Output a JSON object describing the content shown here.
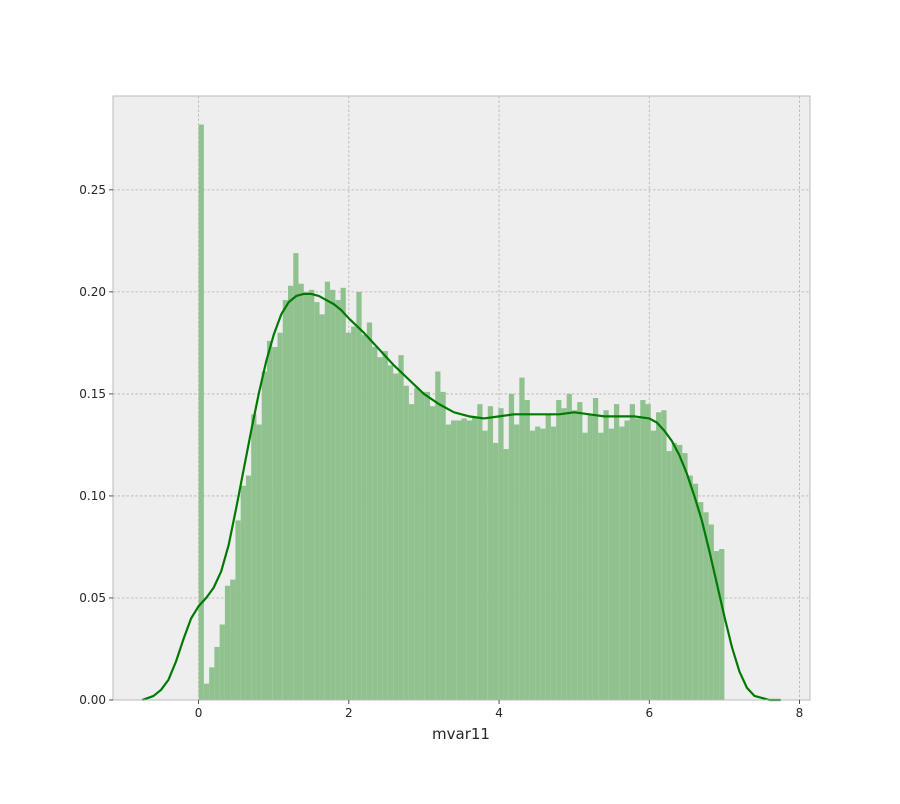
{
  "chart_data": {
    "type": "bar",
    "subtype": "histogram-with-kde",
    "title": "",
    "xlabel": "mvar11",
    "ylabel": "",
    "xlim": [
      -1.14,
      8.14
    ],
    "ylim": [
      0,
      0.296
    ],
    "x_ticks": [
      0,
      2,
      4,
      6,
      8
    ],
    "x_tick_labels": [
      "0",
      "2",
      "4",
      "6",
      "8"
    ],
    "y_ticks": [
      0.0,
      0.05,
      0.1,
      0.15,
      0.2,
      0.25
    ],
    "y_tick_labels": [
      "0.00",
      "0.05",
      "0.10",
      "0.15",
      "0.20",
      "0.25"
    ],
    "grid": true,
    "style": "bmh",
    "colors": {
      "background": "#eeeeee",
      "grid": "#b2b2b2",
      "spine": "#bcbcbc",
      "bars": "#90c290",
      "kde_line": "#007a00"
    },
    "histogram": {
      "bin_start": 0.0,
      "bin_width": 0.07,
      "densities": [
        0.282,
        0.008,
        0.016,
        0.026,
        0.037,
        0.056,
        0.059,
        0.088,
        0.105,
        0.11,
        0.14,
        0.135,
        0.161,
        0.176,
        0.173,
        0.18,
        0.196,
        0.203,
        0.219,
        0.204,
        0.2,
        0.201,
        0.195,
        0.189,
        0.205,
        0.201,
        0.196,
        0.202,
        0.18,
        0.183,
        0.2,
        0.179,
        0.185,
        0.173,
        0.168,
        0.171,
        0.164,
        0.16,
        0.169,
        0.154,
        0.145,
        0.153,
        0.151,
        0.151,
        0.144,
        0.161,
        0.151,
        0.135,
        0.137,
        0.137,
        0.138,
        0.137,
        0.139,
        0.145,
        0.132,
        0.144,
        0.126,
        0.143,
        0.123,
        0.15,
        0.135,
        0.158,
        0.147,
        0.132,
        0.134,
        0.133,
        0.14,
        0.134,
        0.147,
        0.143,
        0.15,
        0.142,
        0.146,
        0.131,
        0.14,
        0.148,
        0.131,
        0.142,
        0.133,
        0.145,
        0.134,
        0.137,
        0.145,
        0.138,
        0.147,
        0.145,
        0.132,
        0.141,
        0.142,
        0.122,
        0.126,
        0.125,
        0.121,
        0.11,
        0.106,
        0.097,
        0.092,
        0.086,
        0.073,
        0.074
      ]
    },
    "kde": {
      "x": [
        -0.75,
        -0.6,
        -0.5,
        -0.4,
        -0.3,
        -0.2,
        -0.1,
        0.0,
        0.1,
        0.2,
        0.3,
        0.4,
        0.5,
        0.6,
        0.7,
        0.8,
        0.9,
        1.0,
        1.1,
        1.2,
        1.3,
        1.4,
        1.5,
        1.6,
        1.7,
        1.8,
        1.9,
        2.0,
        2.2,
        2.4,
        2.6,
        2.8,
        3.0,
        3.2,
        3.4,
        3.6,
        3.8,
        4.0,
        4.2,
        4.4,
        4.6,
        4.8,
        5.0,
        5.2,
        5.4,
        5.6,
        5.8,
        6.0,
        6.1,
        6.2,
        6.3,
        6.4,
        6.5,
        6.6,
        6.7,
        6.8,
        6.9,
        7.0,
        7.1,
        7.2,
        7.3,
        7.4,
        7.5,
        7.6,
        7.75
      ],
      "y": [
        0.0,
        0.002,
        0.005,
        0.01,
        0.019,
        0.03,
        0.04,
        0.046,
        0.05,
        0.055,
        0.063,
        0.076,
        0.094,
        0.113,
        0.132,
        0.15,
        0.166,
        0.179,
        0.189,
        0.195,
        0.198,
        0.199,
        0.199,
        0.198,
        0.196,
        0.194,
        0.191,
        0.187,
        0.18,
        0.172,
        0.164,
        0.157,
        0.15,
        0.145,
        0.141,
        0.139,
        0.138,
        0.139,
        0.14,
        0.14,
        0.14,
        0.14,
        0.141,
        0.14,
        0.139,
        0.139,
        0.139,
        0.138,
        0.136,
        0.132,
        0.127,
        0.12,
        0.111,
        0.1,
        0.088,
        0.073,
        0.057,
        0.041,
        0.026,
        0.014,
        0.006,
        0.002,
        0.001,
        0.0,
        0.0
      ]
    }
  }
}
